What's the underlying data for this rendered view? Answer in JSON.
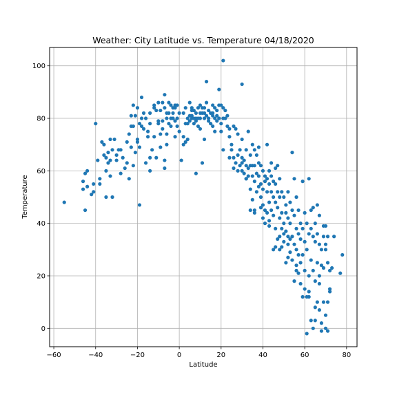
{
  "chart_data": {
    "type": "scatter",
    "title": "Weather:  City Latitude vs. Temperature 04/18/2020",
    "xlabel": "Latitude",
    "ylabel": "Temperature",
    "xlim": [
      -62,
      85
    ],
    "ylim": [
      -7,
      107
    ],
    "xticks": [
      -60,
      -40,
      -20,
      0,
      20,
      40,
      60,
      80
    ],
    "yticks": [
      0,
      20,
      40,
      60,
      80,
      100
    ],
    "grid": true,
    "marker_color": "#1f77b4",
    "points": [
      [
        -55,
        48
      ],
      [
        -46,
        56
      ],
      [
        -46,
        53
      ],
      [
        -45,
        45
      ],
      [
        -45,
        59
      ],
      [
        -44,
        60
      ],
      [
        -44,
        54
      ],
      [
        -42,
        51
      ],
      [
        -41,
        55
      ],
      [
        -41,
        52
      ],
      [
        -40,
        78
      ],
      [
        -39,
        64
      ],
      [
        -38,
        57
      ],
      [
        -38,
        55
      ],
      [
        -37,
        71
      ],
      [
        -36,
        70
      ],
      [
        -36,
        66
      ],
      [
        -35,
        65
      ],
      [
        -35,
        60
      ],
      [
        -35,
        50
      ],
      [
        -34,
        67
      ],
      [
        -34,
        63
      ],
      [
        -33,
        72
      ],
      [
        -33,
        64
      ],
      [
        -33,
        58
      ],
      [
        -32,
        50
      ],
      [
        -32,
        68
      ],
      [
        -31,
        72
      ],
      [
        -30,
        66
      ],
      [
        -30,
        64
      ],
      [
        -29,
        68
      ],
      [
        -28,
        59
      ],
      [
        -28,
        68
      ],
      [
        -27,
        65
      ],
      [
        -26,
        61
      ],
      [
        -25,
        71
      ],
      [
        -25,
        63
      ],
      [
        -24,
        74
      ],
      [
        -24,
        57
      ],
      [
        -23,
        81
      ],
      [
        -23,
        69
      ],
      [
        -23,
        77
      ],
      [
        -22,
        85
      ],
      [
        -22,
        62
      ],
      [
        -21,
        81
      ],
      [
        -21,
        67
      ],
      [
        -20,
        84
      ],
      [
        -20,
        72
      ],
      [
        -20,
        71
      ],
      [
        -19,
        78
      ],
      [
        -19,
        69
      ],
      [
        -19,
        47
      ],
      [
        -18,
        88
      ],
      [
        -18,
        80
      ],
      [
        -17,
        82
      ],
      [
        -17,
        76
      ],
      [
        -16,
        80
      ],
      [
        -16,
        63
      ],
      [
        -15,
        75
      ],
      [
        -15,
        73
      ],
      [
        -14,
        82
      ],
      [
        -14,
        78
      ],
      [
        -14,
        65
      ],
      [
        -14,
        60
      ],
      [
        -13,
        68
      ],
      [
        -12,
        85
      ],
      [
        -12,
        73
      ],
      [
        -11,
        65
      ],
      [
        -11,
        83
      ],
      [
        -10,
        86
      ],
      [
        -10,
        79
      ],
      [
        -10,
        78
      ],
      [
        -9,
        83
      ],
      [
        -9,
        74
      ],
      [
        -9,
        69
      ],
      [
        -8,
        86
      ],
      [
        -8,
        79
      ],
      [
        -8,
        76
      ],
      [
        -7,
        89
      ],
      [
        -7,
        84
      ],
      [
        -7,
        64
      ],
      [
        -7,
        61
      ],
      [
        -6,
        82
      ],
      [
        -6,
        80
      ],
      [
        -6,
        70
      ],
      [
        -5,
        86
      ],
      [
        -5,
        82
      ],
      [
        -5,
        78
      ],
      [
        -4,
        85
      ],
      [
        -4,
        80
      ],
      [
        -4,
        77
      ],
      [
        -3,
        84
      ],
      [
        -3,
        82
      ],
      [
        -3,
        80
      ],
      [
        -2,
        85
      ],
      [
        -2,
        79
      ],
      [
        -2,
        73
      ],
      [
        -1,
        85
      ],
      [
        -1,
        80
      ],
      [
        -1,
        77
      ],
      [
        0,
        82
      ],
      [
        0,
        75
      ],
      [
        1,
        64
      ],
      [
        2,
        73
      ],
      [
        2,
        70
      ],
      [
        3,
        84
      ],
      [
        3,
        78
      ],
      [
        3,
        71
      ],
      [
        4,
        80
      ],
      [
        4,
        72
      ],
      [
        5,
        86
      ],
      [
        5,
        81
      ],
      [
        5,
        79
      ],
      [
        6,
        84
      ],
      [
        6,
        81
      ],
      [
        6,
        80
      ],
      [
        7,
        83
      ],
      [
        7,
        80
      ],
      [
        7,
        78
      ],
      [
        8,
        82
      ],
      [
        8,
        80
      ],
      [
        8,
        59
      ],
      [
        9,
        84
      ],
      [
        9,
        80
      ],
      [
        9,
        77
      ],
      [
        10,
        85
      ],
      [
        10,
        82
      ],
      [
        10,
        80
      ],
      [
        10,
        76
      ],
      [
        11,
        84
      ],
      [
        11,
        82
      ],
      [
        11,
        63
      ],
      [
        12,
        82
      ],
      [
        12,
        80
      ],
      [
        12,
        72
      ],
      [
        13,
        94
      ],
      [
        13,
        86
      ],
      [
        13,
        81
      ],
      [
        14,
        83
      ],
      [
        14,
        80
      ],
      [
        15,
        82
      ],
      [
        15,
        78
      ],
      [
        16,
        85
      ],
      [
        16,
        82
      ],
      [
        16,
        77
      ],
      [
        17,
        84
      ],
      [
        17,
        80
      ],
      [
        17,
        75
      ],
      [
        18,
        83
      ],
      [
        18,
        79
      ],
      [
        19,
        91
      ],
      [
        19,
        85
      ],
      [
        19,
        80
      ],
      [
        20,
        85
      ],
      [
        20,
        78
      ],
      [
        20,
        75
      ],
      [
        21,
        102
      ],
      [
        21,
        84
      ],
      [
        21,
        80
      ],
      [
        21,
        68
      ],
      [
        22,
        83
      ],
      [
        22,
        80
      ],
      [
        23,
        81
      ],
      [
        23,
        77
      ],
      [
        24,
        76
      ],
      [
        24,
        73
      ],
      [
        25,
        70
      ],
      [
        25,
        68
      ],
      [
        26,
        77
      ],
      [
        26,
        65
      ],
      [
        27,
        76
      ],
      [
        27,
        63
      ],
      [
        28,
        74
      ],
      [
        28,
        66
      ],
      [
        29,
        68
      ],
      [
        29,
        62
      ],
      [
        30,
        93
      ],
      [
        30,
        72
      ],
      [
        30,
        65
      ],
      [
        30,
        60
      ],
      [
        31,
        64
      ],
      [
        31,
        59
      ],
      [
        32,
        68
      ],
      [
        32,
        62
      ],
      [
        32,
        57
      ],
      [
        33,
        75
      ],
      [
        33,
        61
      ],
      [
        33,
        58
      ],
      [
        34,
        66
      ],
      [
        34,
        62
      ],
      [
        34,
        53
      ],
      [
        34,
        45
      ],
      [
        35,
        70
      ],
      [
        35,
        62
      ],
      [
        35,
        58
      ],
      [
        35,
        49
      ],
      [
        36,
        68
      ],
      [
        36,
        62
      ],
      [
        36,
        56
      ],
      [
        36,
        45
      ],
      [
        37,
        66
      ],
      [
        37,
        59
      ],
      [
        37,
        52
      ],
      [
        38,
        69
      ],
      [
        38,
        63
      ],
      [
        38,
        58
      ],
      [
        38,
        54
      ],
      [
        39,
        62
      ],
      [
        39,
        55
      ],
      [
        39,
        50
      ],
      [
        40,
        60
      ],
      [
        40,
        53
      ],
      [
        40,
        47
      ],
      [
        40,
        42
      ],
      [
        41,
        58
      ],
      [
        41,
        56
      ],
      [
        41,
        45
      ],
      [
        41,
        40
      ],
      [
        42,
        70
      ],
      [
        42,
        57
      ],
      [
        42,
        52
      ],
      [
        42,
        44
      ],
      [
        43,
        60
      ],
      [
        43,
        55
      ],
      [
        43,
        48
      ],
      [
        43,
        41
      ],
      [
        44,
        63
      ],
      [
        44,
        58
      ],
      [
        44,
        52
      ],
      [
        44,
        45
      ],
      [
        45,
        56
      ],
      [
        45,
        50
      ],
      [
        45,
        43
      ],
      [
        45,
        30
      ],
      [
        46,
        61
      ],
      [
        46,
        55
      ],
      [
        46,
        48
      ],
      [
        46,
        38
      ],
      [
        47,
        62
      ],
      [
        47,
        52
      ],
      [
        47,
        46
      ],
      [
        47,
        34
      ],
      [
        48,
        57
      ],
      [
        48,
        50
      ],
      [
        48,
        42
      ],
      [
        48,
        35
      ],
      [
        49,
        52
      ],
      [
        49,
        44
      ],
      [
        49,
        38
      ],
      [
        49,
        31
      ],
      [
        50,
        50
      ],
      [
        50,
        40
      ],
      [
        50,
        36
      ],
      [
        50,
        33
      ],
      [
        51,
        47
      ],
      [
        51,
        44
      ],
      [
        51,
        37
      ],
      [
        51,
        25
      ],
      [
        52,
        52
      ],
      [
        52,
        42
      ],
      [
        52,
        35
      ],
      [
        52,
        32
      ],
      [
        53,
        48
      ],
      [
        53,
        40
      ],
      [
        53,
        34
      ],
      [
        53,
        29
      ],
      [
        54,
        67
      ],
      [
        54,
        45
      ],
      [
        54,
        35
      ],
      [
        54,
        26
      ],
      [
        55,
        57
      ],
      [
        55,
        43
      ],
      [
        55,
        32
      ],
      [
        55,
        18
      ],
      [
        56,
        50
      ],
      [
        56,
        38
      ],
      [
        56,
        30
      ],
      [
        56,
        22
      ],
      [
        57,
        45
      ],
      [
        57,
        36
      ],
      [
        57,
        28
      ],
      [
        57,
        21
      ],
      [
        58,
        40
      ],
      [
        58,
        34
      ],
      [
        58,
        25
      ],
      [
        58,
        17
      ],
      [
        59,
        56
      ],
      [
        59,
        38
      ],
      [
        59,
        28
      ],
      [
        59,
        12
      ],
      [
        60,
        44
      ],
      [
        60,
        33
      ],
      [
        60,
        22
      ],
      [
        60,
        15
      ],
      [
        61,
        40
      ],
      [
        61,
        30
      ],
      [
        61,
        12
      ],
      [
        61,
        -2
      ],
      [
        62,
        57
      ],
      [
        62,
        36
      ],
      [
        62,
        20
      ],
      [
        62,
        12
      ],
      [
        63,
        45
      ],
      [
        63,
        38
      ],
      [
        63,
        26
      ],
      [
        63,
        3
      ],
      [
        64,
        46
      ],
      [
        64,
        35
      ],
      [
        64,
        22
      ],
      [
        64,
        0
      ],
      [
        65,
        40
      ],
      [
        65,
        33
      ],
      [
        65,
        18
      ],
      [
        65,
        3
      ],
      [
        66,
        47
      ],
      [
        66,
        36
      ],
      [
        66,
        25
      ],
      [
        66,
        10
      ],
      [
        67,
        43
      ],
      [
        67,
        32
      ],
      [
        67,
        20
      ],
      [
        67,
        7
      ],
      [
        68,
        30
      ],
      [
        68,
        24
      ],
      [
        68,
        2
      ],
      [
        68,
        -1
      ],
      [
        69,
        39
      ],
      [
        69,
        35
      ],
      [
        69,
        23
      ],
      [
        69,
        10
      ],
      [
        70,
        39
      ],
      [
        70,
        30
      ],
      [
        70,
        5
      ],
      [
        70,
        0
      ],
      [
        71,
        35
      ],
      [
        71,
        25
      ],
      [
        71,
        10
      ],
      [
        71,
        -1
      ],
      [
        72,
        15
      ],
      [
        72,
        14
      ],
      [
        73,
        23
      ],
      [
        74,
        35
      ],
      [
        77,
        21
      ],
      [
        78,
        28
      ],
      [
        -22,
        77
      ],
      [
        -18,
        77
      ],
      [
        -12,
        84
      ],
      [
        -6,
        74
      ],
      [
        -2,
        84
      ],
      [
        2,
        82
      ],
      [
        4,
        78
      ],
      [
        6,
        83
      ],
      [
        8,
        79
      ],
      [
        12,
        84
      ],
      [
        14,
        79
      ],
      [
        16,
        81
      ],
      [
        18,
        81
      ],
      [
        24,
        65
      ],
      [
        26,
        61
      ],
      [
        28,
        60
      ],
      [
        30,
        63
      ],
      [
        32,
        57
      ],
      [
        36,
        44
      ],
      [
        39,
        46
      ],
      [
        43,
        39
      ],
      [
        46,
        31
      ],
      [
        48,
        30
      ],
      [
        52,
        27
      ],
      [
        56,
        24
      ],
      [
        62,
        14
      ],
      [
        65,
        8
      ],
      [
        67,
        17
      ],
      [
        70,
        32
      ],
      [
        72,
        22
      ]
    ]
  }
}
